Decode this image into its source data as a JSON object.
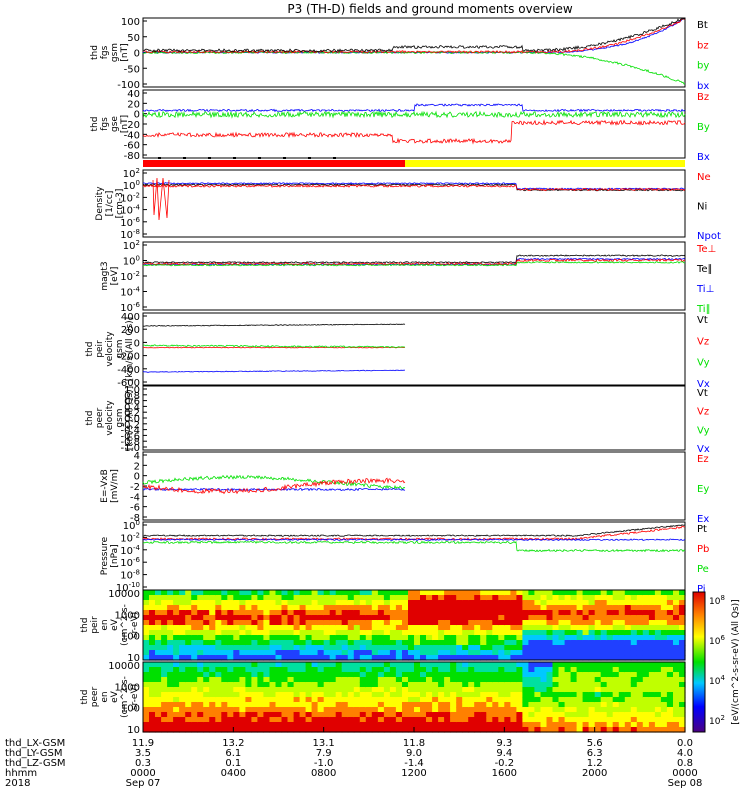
{
  "title": "P3 (TH-D) fields and ground moments overview",
  "colors": {
    "black": "#000000",
    "red": "#ff0000",
    "green": "#00e000",
    "blue": "#0000ff",
    "yellow": "#ffff00"
  },
  "chart_data": [
    {
      "type": "line",
      "id": "fgs_gsm",
      "ylabel_lines": [
        "thd",
        "fgs",
        "gsm",
        "[nT]"
      ],
      "ylim": [
        -100,
        100
      ],
      "yticks": [
        "100",
        "50",
        "0",
        "-50",
        "-100"
      ],
      "series": [
        {
          "name": "Bt",
          "color": "black"
        },
        {
          "name": "bz",
          "color": "red"
        },
        {
          "name": "by",
          "color": "green"
        },
        {
          "name": "bx",
          "color": "blue"
        }
      ]
    },
    {
      "type": "line",
      "id": "fgs_gse",
      "ylabel_lines": [
        "thd",
        "fgs",
        "gse",
        "[nT]"
      ],
      "ylim": [
        -90,
        40
      ],
      "yticks": [
        "40",
        "20",
        "0",
        "-20",
        "-40",
        "-60",
        "-80"
      ],
      "series": [
        {
          "name": "Bz",
          "color": "red"
        },
        {
          "name": "By",
          "color": "green"
        },
        {
          "name": "Bx",
          "color": "blue"
        }
      ]
    },
    {
      "type": "line",
      "id": "density",
      "ylabel_lines": [
        "Density",
        "[1/cc]",
        "[cm-3]"
      ],
      "ylim": [
        -8,
        3
      ],
      "scale": "log",
      "yticks": [
        "10^2",
        "10^0",
        "10^-2",
        "10^-4",
        "10^-6",
        "10^-8"
      ],
      "series": [
        {
          "name": "Ne",
          "color": "red"
        },
        {
          "name": "Ni",
          "color": "black"
        },
        {
          "name": "Npot",
          "color": "blue"
        }
      ]
    },
    {
      "type": "line",
      "id": "temp",
      "ylabel_lines": [
        "magt3",
        "[eV]"
      ],
      "ylim": [
        -7,
        3
      ],
      "scale": "log",
      "yticks": [
        "10^2",
        "10^0",
        "10^-2",
        "10^-4",
        "10^-6"
      ],
      "series": [
        {
          "name": "Te⊥",
          "color": "red"
        },
        {
          "name": "Te∥",
          "color": "black"
        },
        {
          "name": "Ti⊥",
          "color": "blue"
        },
        {
          "name": "Ti∥",
          "color": "green"
        }
      ]
    },
    {
      "type": "line",
      "id": "peir_vel",
      "ylabel_lines": [
        "thd",
        "peir",
        "velocity",
        "gsm",
        "[km/s (All Qs)]"
      ],
      "ylim": [
        -600,
        500
      ],
      "yticks": [
        "400",
        "200",
        "0",
        "-200",
        "-400",
        "-600"
      ],
      "series": [
        {
          "name": "Vt",
          "color": "black"
        },
        {
          "name": "Vz",
          "color": "red"
        },
        {
          "name": "Vy",
          "color": "green"
        },
        {
          "name": "Vx",
          "color": "blue"
        }
      ]
    },
    {
      "type": "line",
      "id": "peer_vel",
      "ylabel_lines": [
        "thd",
        "peer",
        "velocity",
        "gsm",
        "[km/s (All Qs)]"
      ],
      "ylim": [
        -1,
        1
      ],
      "yticks": [
        "1.0",
        "0.8",
        "0.6",
        "0.4",
        "0.2",
        "0.0",
        "-0.2",
        "-0.4",
        "-0.6",
        "-0.8",
        "-1.0"
      ],
      "series": [
        {
          "name": "Vt",
          "color": "black"
        },
        {
          "name": "Vz",
          "color": "red"
        },
        {
          "name": "Vy",
          "color": "green"
        },
        {
          "name": "Vx",
          "color": "blue"
        }
      ]
    },
    {
      "type": "line",
      "id": "efield",
      "ylabel_lines": [
        "E=-VxB",
        "[mV/m]"
      ],
      "ylim": [
        -8,
        6
      ],
      "yticks": [
        "4",
        "2",
        "0",
        "-2",
        "-4",
        "-6",
        "-8"
      ],
      "series": [
        {
          "name": "Ez",
          "color": "red"
        },
        {
          "name": "Ey",
          "color": "green"
        },
        {
          "name": "Ex",
          "color": "blue"
        }
      ]
    },
    {
      "type": "line",
      "id": "pressure",
      "ylabel_lines": [
        "Pressure",
        "[nPa]"
      ],
      "ylim": [
        -10,
        1
      ],
      "scale": "log",
      "yticks": [
        "10^0",
        "10^-2",
        "10^-4",
        "10^-6",
        "10^-8",
        "10^-10"
      ],
      "series": [
        {
          "name": "Pt",
          "color": "black"
        },
        {
          "name": "Pb",
          "color": "red"
        },
        {
          "name": "Pe",
          "color": "green"
        },
        {
          "name": "Pi",
          "color": "blue"
        }
      ]
    },
    {
      "type": "heatmap",
      "id": "peir_eflux",
      "ylabel_lines": [
        "thd",
        "peir",
        "en",
        "eV",
        "(cm^2-s-",
        "sr-eV)"
      ],
      "yticks": [
        "10000",
        "1000",
        "100",
        "10"
      ]
    },
    {
      "type": "heatmap",
      "id": "peer_eflux",
      "ylabel_lines": [
        "thd",
        "peer",
        "en",
        "eV",
        "(cm^2-s-",
        "sr-eV)"
      ],
      "yticks": [
        "10000",
        "1000",
        "100",
        "10"
      ]
    }
  ],
  "colorbar": {
    "label": "[eV/(cm^2-s-sr-eV) (All Qs)]",
    "ticks": [
      "10^8",
      "10^6",
      "10^4",
      "10^2"
    ]
  },
  "xaxis": {
    "rows": [
      {
        "label": "thd_LX-GSM",
        "values": [
          "11.9",
          "13.2",
          "13.1",
          "11.8",
          "9.3",
          "5.6",
          "0.0"
        ]
      },
      {
        "label": "thd_LY-GSM",
        "values": [
          "3.5",
          "6.1",
          "7.9",
          "9.0",
          "9.4",
          "6.3",
          "4.0"
        ]
      },
      {
        "label": "thd_LZ-GSM",
        "values": [
          "0.3",
          "0.1",
          "-1.0",
          "-1.4",
          "-0.2",
          "1.2",
          "0.8"
        ]
      },
      {
        "label": "hhmm",
        "values": [
          "0000",
          "0400",
          "0800",
          "1200",
          "1600",
          "2000",
          "0000"
        ]
      }
    ],
    "year": "2018",
    "date_start": "Sep 07",
    "date_end": "Sep 08"
  }
}
